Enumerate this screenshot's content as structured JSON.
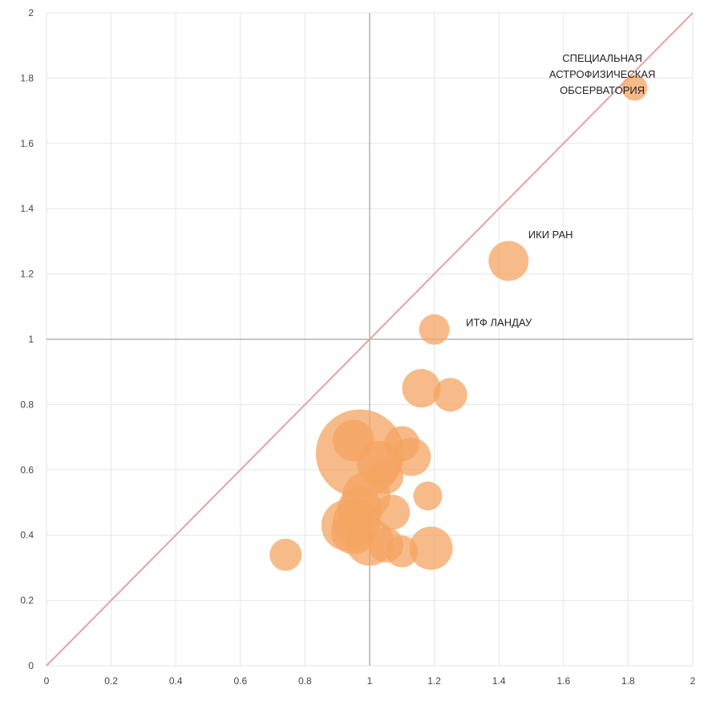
{
  "chart_data": {
    "type": "scatter",
    "title": "",
    "xlabel": "",
    "ylabel": "",
    "xlim": [
      0,
      2
    ],
    "ylim": [
      0,
      2
    ],
    "grid": true,
    "x_ticks": [
      "0",
      "0.2",
      "0.4",
      "0.6",
      "0.8",
      "1",
      "1.2",
      "1.4",
      "1.6",
      "1.8",
      "2"
    ],
    "y_ticks": [
      "0",
      "0.2",
      "0.4",
      "0.6",
      "0.8",
      "1",
      "1.2",
      "1.4",
      "1.6",
      "1.8",
      "2"
    ],
    "reference_lines": {
      "diagonal": true,
      "vertical_at_x": 1,
      "horizontal_at_y": 1
    },
    "colors": {
      "bubble": "#f4a461",
      "diagonal": "#e4a3a3",
      "grid": "#e6e6e6",
      "axis_ref": "#8c8c8c"
    },
    "points": [
      {
        "x": 1.82,
        "y": 1.77,
        "size": 16
      },
      {
        "x": 1.43,
        "y": 1.24,
        "size": 25
      },
      {
        "x": 1.2,
        "y": 1.03,
        "size": 19
      },
      {
        "x": 1.16,
        "y": 0.85,
        "size": 24
      },
      {
        "x": 1.25,
        "y": 0.83,
        "size": 21
      },
      {
        "x": 0.97,
        "y": 0.65,
        "size": 55
      },
      {
        "x": 0.95,
        "y": 0.69,
        "size": 26
      },
      {
        "x": 1.1,
        "y": 0.68,
        "size": 22
      },
      {
        "x": 1.13,
        "y": 0.64,
        "size": 24
      },
      {
        "x": 1.03,
        "y": 0.62,
        "size": 28
      },
      {
        "x": 1.05,
        "y": 0.58,
        "size": 22
      },
      {
        "x": 1.18,
        "y": 0.52,
        "size": 18
      },
      {
        "x": 0.99,
        "y": 0.52,
        "size": 30
      },
      {
        "x": 0.97,
        "y": 0.48,
        "size": 28
      },
      {
        "x": 1.07,
        "y": 0.47,
        "size": 22
      },
      {
        "x": 0.96,
        "y": 0.44,
        "size": 30
      },
      {
        "x": 0.93,
        "y": 0.43,
        "size": 32
      },
      {
        "x": 0.95,
        "y": 0.41,
        "size": 28
      },
      {
        "x": 1.0,
        "y": 0.38,
        "size": 30
      },
      {
        "x": 1.05,
        "y": 0.37,
        "size": 22
      },
      {
        "x": 1.1,
        "y": 0.35,
        "size": 20
      },
      {
        "x": 1.19,
        "y": 0.36,
        "size": 27
      },
      {
        "x": 0.74,
        "y": 0.34,
        "size": 20
      }
    ],
    "annotations": [
      {
        "lines": [
          "СПЕЦИАЛЬНАЯ",
          "АСТРОФИЗИЧЕСКАЯ",
          "ОБСЕРВАТОРИЯ"
        ],
        "x": 1.72,
        "y": 1.85
      },
      {
        "lines": [
          "ИКИ РАН"
        ],
        "x": 1.56,
        "y": 1.31
      },
      {
        "lines": [
          "ИТФ ЛАНДАУ"
        ],
        "x": 1.4,
        "y": 1.04
      }
    ]
  }
}
